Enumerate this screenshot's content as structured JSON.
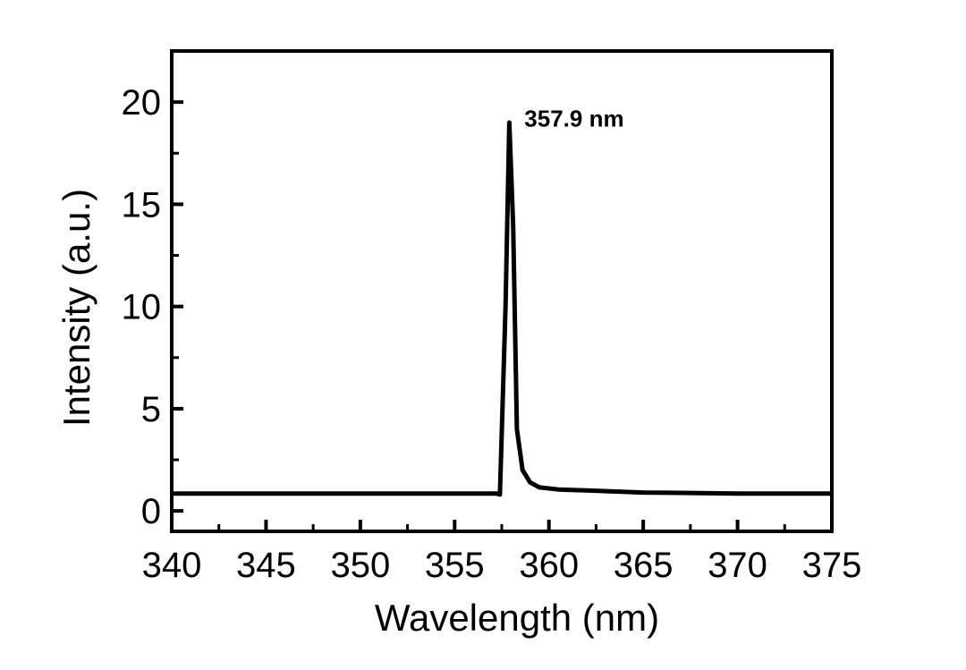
{
  "chart_data": {
    "type": "line",
    "title": "",
    "xlabel": "Wavelength (nm)",
    "ylabel": "Intensity (a.u.)",
    "xlim": [
      340,
      375
    ],
    "ylim": [
      -1,
      22.5
    ],
    "x_ticks": [
      340,
      345,
      350,
      355,
      360,
      365,
      370,
      375
    ],
    "x_tick_labels": [
      "340",
      "345",
      "350",
      "355",
      "360",
      "365",
      "370",
      "375"
    ],
    "y_ticks": [
      0,
      5,
      10,
      15,
      20
    ],
    "y_tick_labels": [
      "0",
      "5",
      "10",
      "15",
      "20"
    ],
    "grid": false,
    "legend": "none",
    "series": [
      {
        "x": [
          340,
          357.2,
          357.4,
          357.7,
          357.9,
          358.1,
          358.3,
          358.6,
          359.0,
          359.5,
          360.5,
          362,
          365,
          370,
          375
        ],
        "y": [
          0.85,
          0.85,
          0.8,
          10.0,
          19.0,
          14.0,
          4.0,
          2.0,
          1.4,
          1.15,
          1.05,
          1.0,
          0.9,
          0.85,
          0.85
        ]
      }
    ],
    "annotations": [
      {
        "text": "357.9 nm",
        "x": 358.7,
        "y": 18.8
      }
    ]
  }
}
